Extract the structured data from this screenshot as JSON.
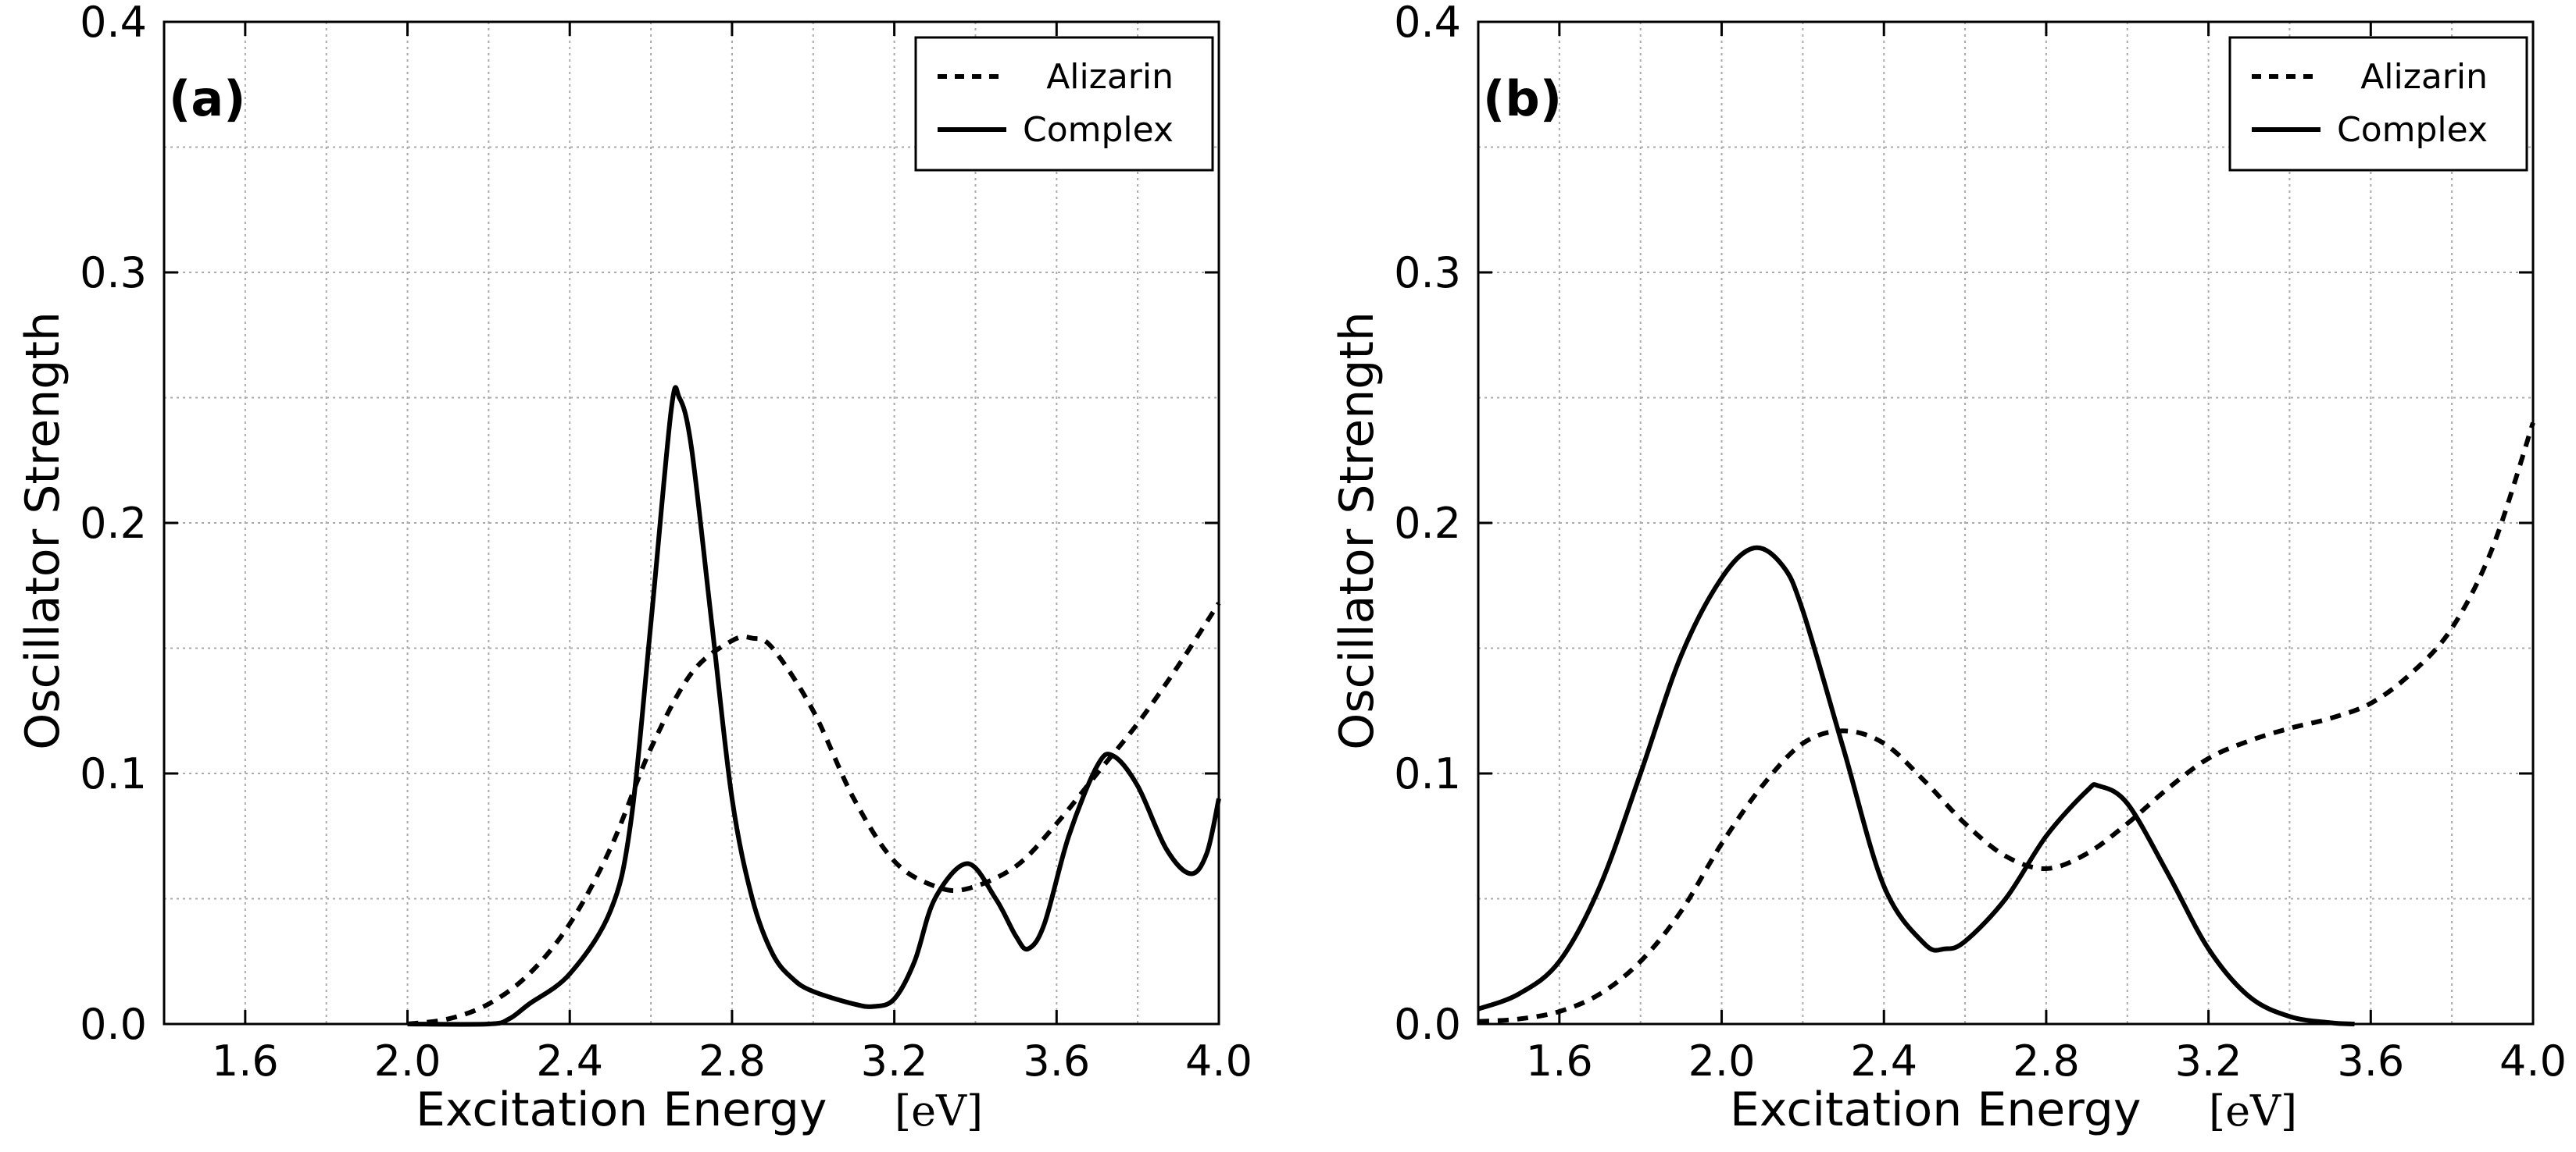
{
  "chart_data": [
    {
      "type": "line",
      "panel_label": "(a)",
      "xlabel": "Excitation Energy",
      "xunit": "[eV]",
      "ylabel": "Oscillator Strength",
      "xlim": [
        1.4,
        4.0
      ],
      "ylim": [
        0.0,
        0.4
      ],
      "xticks": [
        "1.6",
        "2.0",
        "2.4",
        "2.8",
        "3.2",
        "3.6",
        "4.0"
      ],
      "yticks": [
        "0.0",
        "0.1",
        "0.2",
        "0.3",
        "0.4"
      ],
      "grid": true,
      "legend_position": "top-right",
      "series": [
        {
          "name": "Alizarin",
          "style": "dashed",
          "points": [
            [
              2.0,
              0.0
            ],
            [
              2.1,
              0.002
            ],
            [
              2.2,
              0.008
            ],
            [
              2.3,
              0.02
            ],
            [
              2.4,
              0.04
            ],
            [
              2.5,
              0.07
            ],
            [
              2.6,
              0.11
            ],
            [
              2.7,
              0.14
            ],
            [
              2.8,
              0.153
            ],
            [
              2.85,
              0.154
            ],
            [
              2.9,
              0.15
            ],
            [
              3.0,
              0.125
            ],
            [
              3.1,
              0.09
            ],
            [
              3.2,
              0.065
            ],
            [
              3.3,
              0.055
            ],
            [
              3.38,
              0.054
            ],
            [
              3.5,
              0.063
            ],
            [
              3.6,
              0.08
            ],
            [
              3.7,
              0.1
            ],
            [
              3.8,
              0.12
            ],
            [
              3.9,
              0.143
            ],
            [
              4.0,
              0.168
            ]
          ]
        },
        {
          "name": "Complex",
          "style": "solid",
          "points": [
            [
              2.0,
              0.0
            ],
            [
              2.2,
              0.0
            ],
            [
              2.25,
              0.002
            ],
            [
              2.3,
              0.008
            ],
            [
              2.4,
              0.02
            ],
            [
              2.5,
              0.045
            ],
            [
              2.55,
              0.08
            ],
            [
              2.6,
              0.16
            ],
            [
              2.65,
              0.245
            ],
            [
              2.67,
              0.25
            ],
            [
              2.7,
              0.23
            ],
            [
              2.75,
              0.16
            ],
            [
              2.8,
              0.09
            ],
            [
              2.85,
              0.05
            ],
            [
              2.9,
              0.028
            ],
            [
              2.95,
              0.018
            ],
            [
              3.0,
              0.013
            ],
            [
              3.1,
              0.008
            ],
            [
              3.15,
              0.007
            ],
            [
              3.2,
              0.01
            ],
            [
              3.25,
              0.025
            ],
            [
              3.3,
              0.05
            ],
            [
              3.38,
              0.064
            ],
            [
              3.45,
              0.05
            ],
            [
              3.5,
              0.035
            ],
            [
              3.53,
              0.03
            ],
            [
              3.57,
              0.04
            ],
            [
              3.63,
              0.075
            ],
            [
              3.7,
              0.103
            ],
            [
              3.74,
              0.107
            ],
            [
              3.8,
              0.095
            ],
            [
              3.87,
              0.07
            ],
            [
              3.93,
              0.06
            ],
            [
              3.97,
              0.068
            ],
            [
              4.0,
              0.09
            ]
          ]
        }
      ]
    },
    {
      "type": "line",
      "panel_label": "(b)",
      "xlabel": "Excitation Energy",
      "xunit": "[eV]",
      "ylabel": "Oscillator Strength",
      "xlim": [
        1.4,
        4.0
      ],
      "ylim": [
        0.0,
        0.4
      ],
      "xticks": [
        "1.6",
        "2.0",
        "2.4",
        "2.8",
        "3.2",
        "3.6",
        "4.0"
      ],
      "yticks": [
        "0.0",
        "0.1",
        "0.2",
        "0.3",
        "0.4"
      ],
      "grid": true,
      "legend_position": "top-right",
      "series": [
        {
          "name": "Alizarin",
          "style": "dashed",
          "points": [
            [
              1.4,
              0.001
            ],
            [
              1.5,
              0.002
            ],
            [
              1.6,
              0.005
            ],
            [
              1.7,
              0.012
            ],
            [
              1.8,
              0.025
            ],
            [
              1.9,
              0.045
            ],
            [
              2.0,
              0.072
            ],
            [
              2.1,
              0.095
            ],
            [
              2.2,
              0.112
            ],
            [
              2.3,
              0.117
            ],
            [
              2.4,
              0.112
            ],
            [
              2.5,
              0.097
            ],
            [
              2.6,
              0.08
            ],
            [
              2.7,
              0.067
            ],
            [
              2.8,
              0.062
            ],
            [
              2.9,
              0.068
            ],
            [
              3.0,
              0.08
            ],
            [
              3.1,
              0.094
            ],
            [
              3.2,
              0.106
            ],
            [
              3.3,
              0.113
            ],
            [
              3.4,
              0.118
            ],
            [
              3.5,
              0.122
            ],
            [
              3.6,
              0.128
            ],
            [
              3.7,
              0.14
            ],
            [
              3.8,
              0.158
            ],
            [
              3.9,
              0.19
            ],
            [
              4.0,
              0.24
            ]
          ]
        },
        {
          "name": "Complex",
          "style": "solid",
          "points": [
            [
              1.4,
              0.006
            ],
            [
              1.5,
              0.012
            ],
            [
              1.6,
              0.025
            ],
            [
              1.7,
              0.055
            ],
            [
              1.8,
              0.1
            ],
            [
              1.9,
              0.147
            ],
            [
              2.0,
              0.178
            ],
            [
              2.08,
              0.19
            ],
            [
              2.15,
              0.183
            ],
            [
              2.2,
              0.165
            ],
            [
              2.3,
              0.11
            ],
            [
              2.4,
              0.055
            ],
            [
              2.5,
              0.032
            ],
            [
              2.55,
              0.03
            ],
            [
              2.6,
              0.033
            ],
            [
              2.7,
              0.05
            ],
            [
              2.8,
              0.075
            ],
            [
              2.9,
              0.093
            ],
            [
              2.93,
              0.095
            ],
            [
              3.0,
              0.088
            ],
            [
              3.1,
              0.06
            ],
            [
              3.2,
              0.03
            ],
            [
              3.3,
              0.011
            ],
            [
              3.4,
              0.003
            ],
            [
              3.5,
              0.0005
            ],
            [
              3.56,
              0.0
            ]
          ]
        }
      ]
    }
  ]
}
